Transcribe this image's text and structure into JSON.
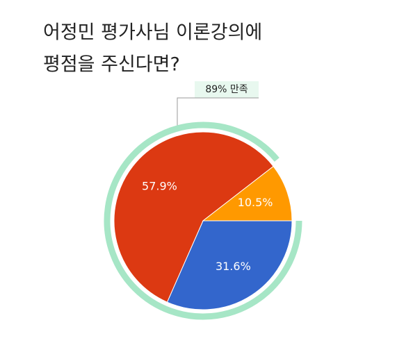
{
  "chart_data": {
    "type": "pie",
    "title_lines": [
      "어정민 평가사님 이론강의에",
      "평점을 주신다면?"
    ],
    "categories": [
      null,
      null,
      null
    ],
    "values": [
      31.6,
      57.9,
      10.5
    ],
    "value_labels": [
      "31.6%",
      "57.9%",
      "10.5%"
    ],
    "colors": [
      "#3366cc",
      "#dc3912",
      "#ff9900"
    ],
    "annotation": {
      "value": 89,
      "label": "89% 만족",
      "color": "#a6e6c6"
    }
  }
}
